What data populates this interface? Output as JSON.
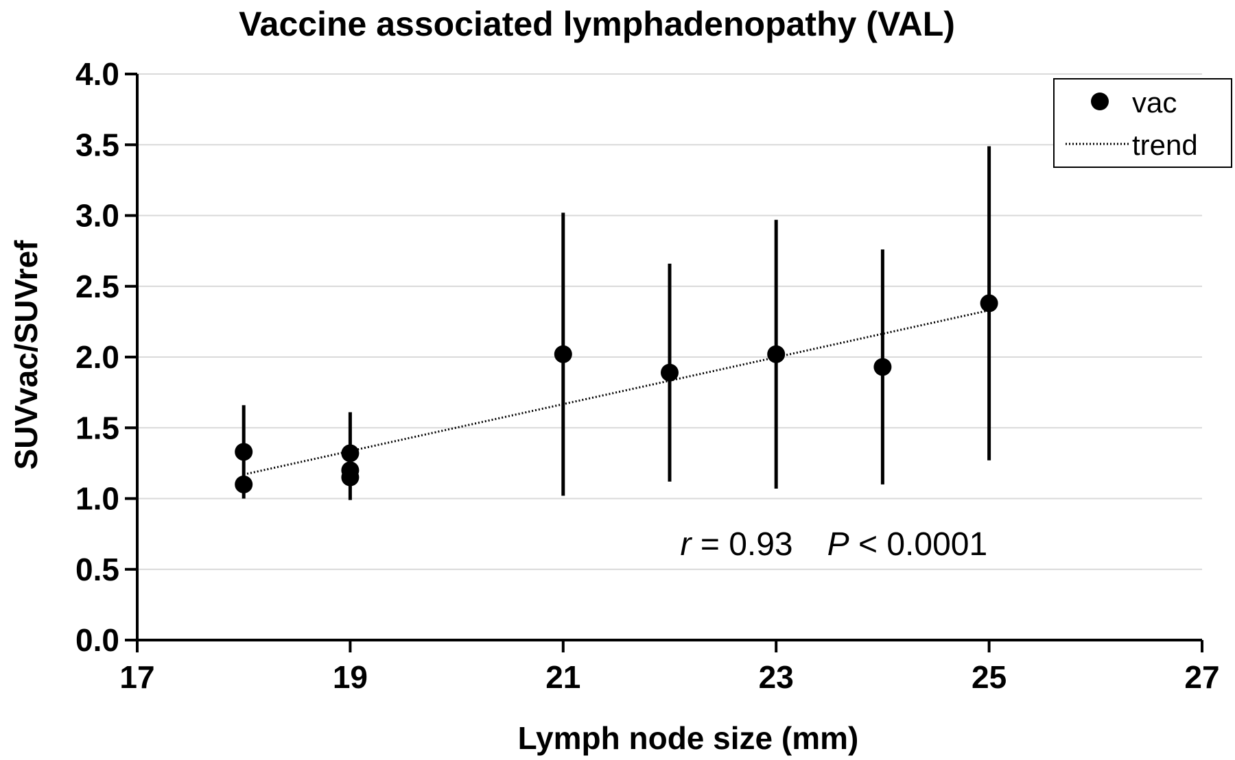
{
  "chart_data": {
    "type": "scatter",
    "title": "Vaccine associated lymphadenopathy (VAL)",
    "xlabel": "Lymph node size (mm)",
    "ylabel": "SUVvac/SUVref",
    "xlim": [
      17,
      27
    ],
    "ylim": [
      0,
      4
    ],
    "xticks": [
      17,
      19,
      21,
      23,
      25,
      27
    ],
    "xtick_labels": [
      "17",
      "19",
      "21",
      "23",
      "25",
      "27"
    ],
    "yticks": [
      0,
      0.5,
      1,
      1.5,
      2,
      2.5,
      3,
      3.5,
      4
    ],
    "ytick_labels": [
      "0.0",
      "0.5",
      "1.0",
      "1.5",
      "2.0",
      "2.5",
      "3.0",
      "3.5",
      "4.0"
    ],
    "grid": "horizontal",
    "legend_position": "top-right",
    "series": [
      {
        "name": "vac",
        "marker": "circle",
        "color": "#000000",
        "points": [
          {
            "x": 18,
            "y": 1.33
          },
          {
            "x": 18,
            "y": 1.1
          },
          {
            "x": 19,
            "y": 1.32
          },
          {
            "x": 19,
            "y": 1.2
          },
          {
            "x": 19,
            "y": 1.15
          },
          {
            "x": 21,
            "y": 2.02
          },
          {
            "x": 22,
            "y": 1.89
          },
          {
            "x": 23,
            "y": 2.02
          },
          {
            "x": 24,
            "y": 1.93
          },
          {
            "x": 25,
            "y": 2.38
          }
        ],
        "error_bars": [
          {
            "x": 18,
            "low": 1.0,
            "high": 1.66
          },
          {
            "x": 19,
            "low": 0.99,
            "high": 1.61
          },
          {
            "x": 21,
            "low": 1.02,
            "high": 3.02
          },
          {
            "x": 22,
            "low": 1.12,
            "high": 2.66
          },
          {
            "x": 23,
            "low": 1.07,
            "high": 2.97
          },
          {
            "x": 24,
            "low": 1.1,
            "high": 2.76
          },
          {
            "x": 25,
            "low": 1.27,
            "high": 3.49
          }
        ]
      },
      {
        "name": "trend",
        "style": "dotted",
        "color": "#000000",
        "x": [
          18,
          25
        ],
        "y": [
          1.17,
          2.33
        ]
      }
    ],
    "annotation": {
      "r_symbol": "r",
      "r_text": " = 0.93",
      "p_symbol": "P",
      "p_text": " < 0.0001",
      "x": 22.1,
      "y": 0.6
    }
  }
}
